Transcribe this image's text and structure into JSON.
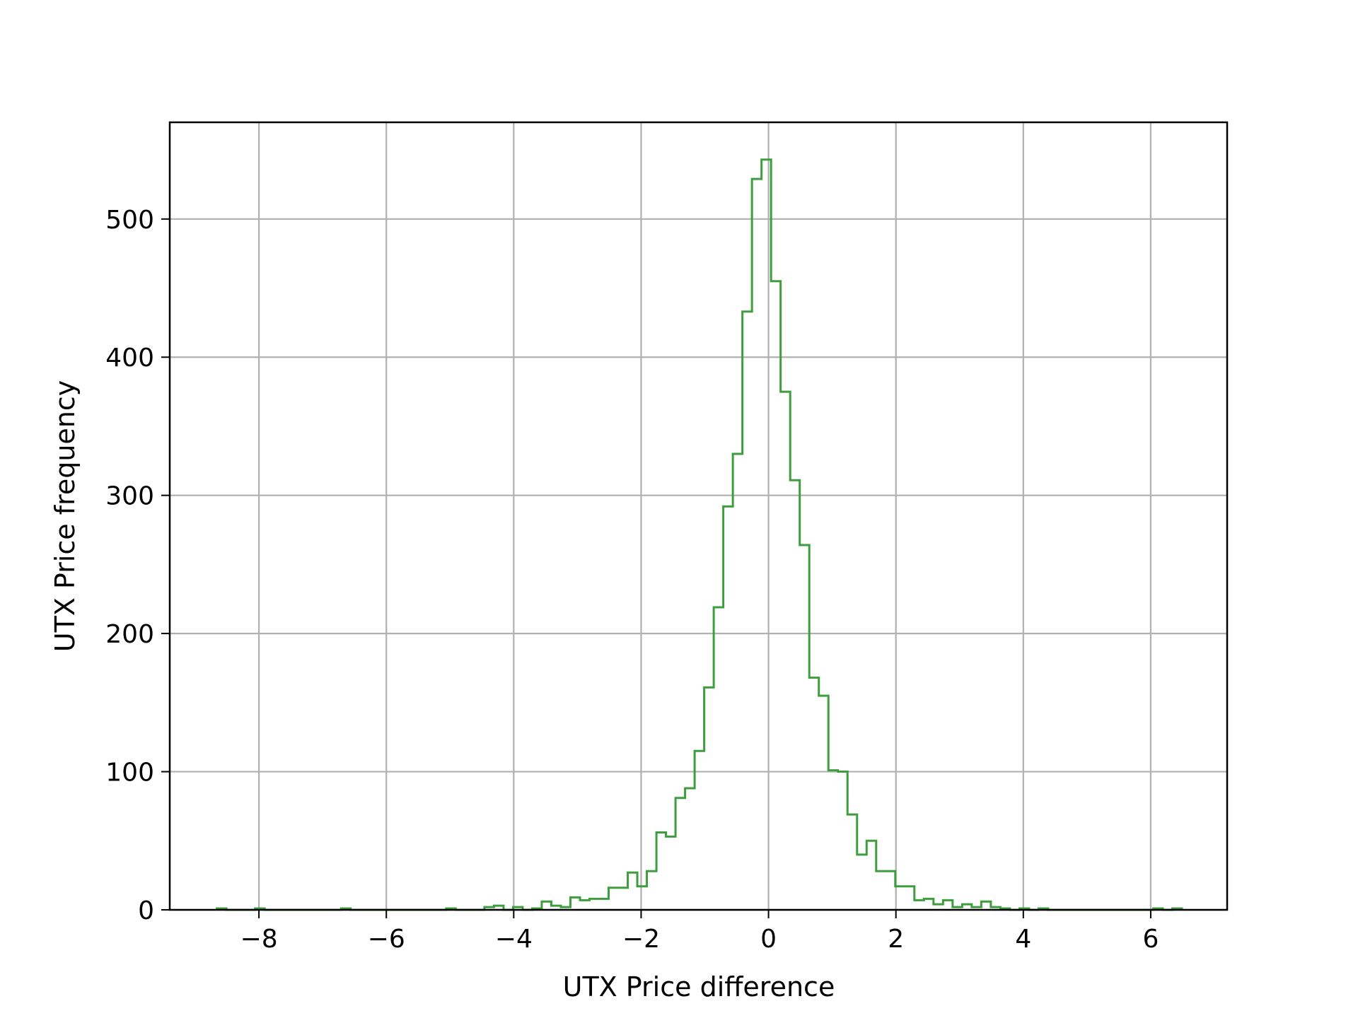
{
  "chart_data": {
    "type": "histogram",
    "title": "",
    "xlabel": "UTX Price difference",
    "ylabel": "UTX Price frequency",
    "xlim": [
      -9.4,
      7.2
    ],
    "ylim": [
      0,
      570
    ],
    "xticks": [
      -8,
      -6,
      -4,
      -2,
      0,
      2,
      4,
      6
    ],
    "xtick_labels": [
      "−8",
      "−6",
      "−4",
      "−2",
      "0",
      "2",
      "4",
      "6"
    ],
    "yticks": [
      0,
      100,
      200,
      300,
      400,
      500
    ],
    "ytick_labels": [
      "0",
      "100",
      "200",
      "300",
      "400",
      "500"
    ],
    "grid": true,
    "line_color": "#3e9e3e",
    "bin_edges": [
      -8.66,
      -8.51,
      -8.36,
      -8.21,
      -8.06,
      -7.91,
      -7.76,
      -7.61,
      -7.46,
      -7.31,
      -7.16,
      -7.01,
      -6.86,
      -6.71,
      -6.56,
      -6.41,
      -6.26,
      -6.11,
      -5.96,
      -5.81,
      -5.66,
      -5.51,
      -5.36,
      -5.21,
      -5.06,
      -4.91,
      -4.76,
      -4.61,
      -4.46,
      -4.31,
      -4.16,
      -4.01,
      -3.86,
      -3.71,
      -3.56,
      -3.41,
      -3.26,
      -3.11,
      -2.96,
      -2.81,
      -2.66,
      -2.51,
      -2.36,
      -2.21,
      -2.06,
      -1.91,
      -1.76,
      -1.61,
      -1.46,
      -1.31,
      -1.16,
      -1.01,
      -0.86,
      -0.71,
      -0.56,
      -0.41,
      -0.26,
      -0.11,
      0.04,
      0.19,
      0.34,
      0.49,
      0.64,
      0.79,
      0.94,
      1.09,
      1.24,
      1.39,
      1.54,
      1.69,
      1.84,
      1.99,
      2.14,
      2.29,
      2.44,
      2.59,
      2.74,
      2.89,
      3.04,
      3.19,
      3.34,
      3.49,
      3.64,
      3.79,
      3.94,
      4.09,
      4.24,
      4.39,
      4.54,
      4.69,
      4.84,
      4.99,
      5.14,
      5.29,
      5.44,
      5.59,
      5.74,
      5.89,
      6.04,
      6.19,
      6.34,
      6.49
    ],
    "counts": [
      1,
      0,
      0,
      0,
      1,
      0,
      0,
      0,
      0,
      0,
      0,
      0,
      0,
      1,
      0,
      0,
      0,
      0,
      0,
      0,
      0,
      0,
      0,
      0,
      1,
      0,
      0,
      0,
      2,
      3,
      0,
      2,
      0,
      1,
      6,
      3,
      2,
      9,
      7,
      8,
      8,
      16,
      16,
      27,
      17,
      28,
      56,
      53,
      81,
      88,
      115,
      161,
      219,
      292,
      330,
      433,
      529,
      543,
      455,
      375,
      311,
      264,
      168,
      155,
      101,
      100,
      69,
      40,
      50,
      28,
      28,
      17,
      17,
      7,
      8,
      4,
      7,
      2,
      4,
      2,
      6,
      2,
      1,
      0,
      1,
      0,
      1,
      0,
      0,
      0,
      0,
      0,
      0,
      0,
      0,
      0,
      0,
      0,
      1,
      0,
      1
    ]
  }
}
